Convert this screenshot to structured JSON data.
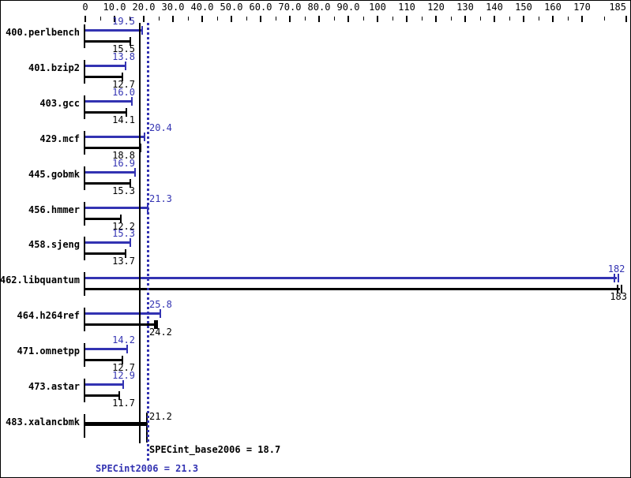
{
  "chart_data": {
    "type": "bar",
    "orientation": "horizontal",
    "title": "",
    "xlabel": "",
    "ylabel": "",
    "xlim": [
      0,
      185
    ],
    "grid": false,
    "colors": {
      "peak": "#3333b2",
      "base": "#000000"
    },
    "axis_major_ticks": [
      {
        "value": 0,
        "label": "0"
      },
      {
        "value": 10,
        "label": "10.0"
      },
      {
        "value": 20,
        "label": "20.0"
      },
      {
        "value": 30,
        "label": "30.0"
      },
      {
        "value": 40,
        "label": "40.0"
      },
      {
        "value": 50,
        "label": "50.0"
      },
      {
        "value": 60,
        "label": "60.0"
      },
      {
        "value": 70,
        "label": "70.0"
      },
      {
        "value": 80,
        "label": "80.0"
      },
      {
        "value": 90,
        "label": "90.0"
      },
      {
        "value": 100,
        "label": "100"
      },
      {
        "value": 110,
        "label": "110"
      },
      {
        "value": 120,
        "label": "120"
      },
      {
        "value": 130,
        "label": "130"
      },
      {
        "value": 140,
        "label": "140"
      },
      {
        "value": 150,
        "label": "150"
      },
      {
        "value": 160,
        "label": "160"
      },
      {
        "value": 170,
        "label": "170"
      },
      {
        "value": 185,
        "label": "185"
      }
    ],
    "axis_minor_ticks": [
      5,
      15,
      25,
      35,
      45,
      55,
      65,
      75,
      85,
      95,
      105,
      115,
      125,
      135,
      145,
      155,
      165,
      177.5
    ],
    "series": [
      {
        "name": "peak",
        "legend": "SPECint2006",
        "color": "#3333b2"
      },
      {
        "name": "base",
        "legend": "SPECint_base2006",
        "color": "#000000"
      }
    ],
    "benchmarks": [
      {
        "name": "400.perlbench",
        "peak": 19.5,
        "peak_label": "19.5",
        "base": 15.5,
        "base_label": "15.5"
      },
      {
        "name": "401.bzip2",
        "peak": 13.8,
        "peak_label": "13.8",
        "base": 12.7,
        "base_label": "12.7"
      },
      {
        "name": "403.gcc",
        "peak": 16.0,
        "peak_label": "16.0",
        "base": 14.1,
        "base_label": "14.1"
      },
      {
        "name": "429.mcf",
        "peak": 20.4,
        "peak_label": "20.4",
        "base": 18.8,
        "base_label": "18.8"
      },
      {
        "name": "445.gobmk",
        "peak": 16.9,
        "peak_label": "16.9",
        "base": 15.3,
        "base_label": "15.3"
      },
      {
        "name": "456.hmmer",
        "peak": 21.3,
        "peak_label": "21.3",
        "base": 12.2,
        "base_label": "12.2"
      },
      {
        "name": "458.sjeng",
        "peak": 15.3,
        "peak_label": "15.3",
        "base": 13.7,
        "base_label": "13.7"
      },
      {
        "name": "462.libquantum",
        "peak": 182,
        "peak_label": "182",
        "base": 183,
        "base_label": "183",
        "end_ticks": 2
      },
      {
        "name": "464.h264ref",
        "peak": 25.8,
        "peak_label": "25.8",
        "base": 24.2,
        "base_label": "24.2",
        "base_cap_wide": true
      },
      {
        "name": "471.omnetpp",
        "peak": 14.2,
        "peak_label": "14.2",
        "base": 12.7,
        "base_label": "12.7"
      },
      {
        "name": "473.astar",
        "peak": 12.9,
        "peak_label": "12.9",
        "base": 11.7,
        "base_label": "11.7"
      },
      {
        "name": "483.xalancbmk",
        "merged": true,
        "value": 21.2,
        "value_label": "21.2"
      }
    ],
    "summary": {
      "base_text": "SPECint_base2006 = 18.7",
      "base_value": 18.7,
      "peak_text": "SPECint2006 = 21.3",
      "peak_value": 21.3
    }
  }
}
